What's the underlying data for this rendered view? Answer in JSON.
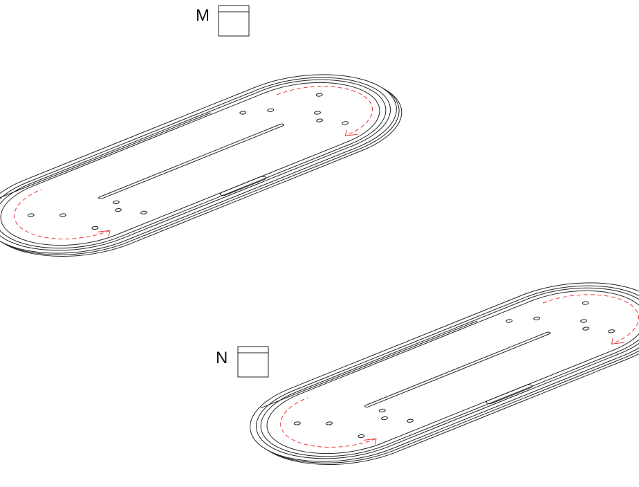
{
  "labels": [
    "M",
    "N"
  ]
}
